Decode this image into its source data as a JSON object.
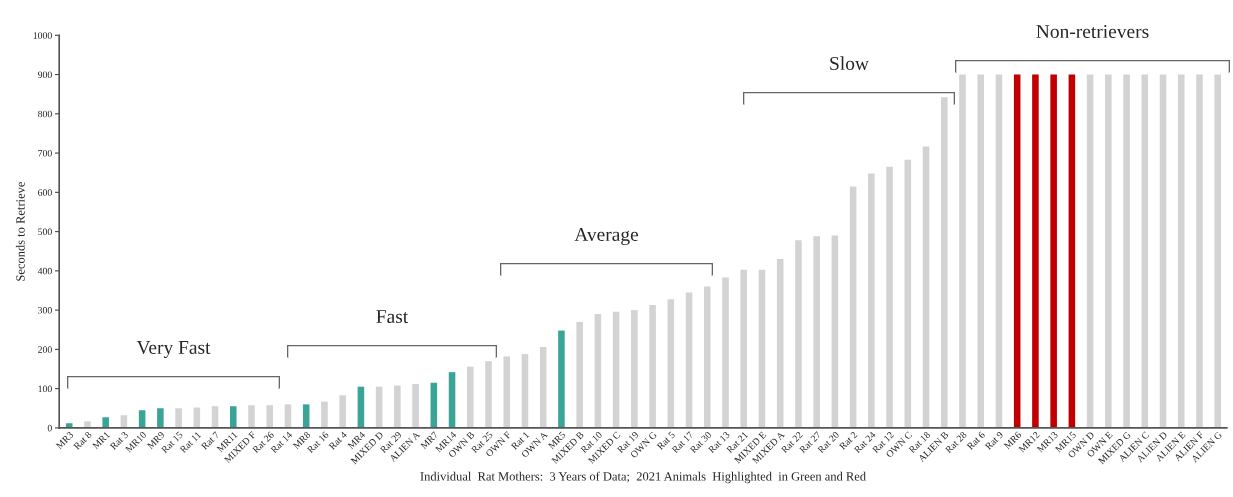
{
  "chart_data": {
    "type": "bar",
    "xlabel": "Individual  Rat Mothers:  3 Years of Data;  2021 Animals  Highlighted  in Green and Red",
    "ylabel": "Seconds to Retrieve",
    "categories": [
      "MR3",
      "Rat 8",
      "MR1",
      "Rat 3",
      "MR10",
      "MR9",
      "Rat 15",
      "Rat 11",
      "Rat 7",
      "MR11",
      "MIXED F",
      "Rat 26",
      "Rat 14",
      "MR8",
      "Rat 16",
      "Rat 4",
      "MR4",
      "MIXED D",
      "Rat 29",
      "ALIEN A",
      "MR7",
      "MR14",
      "OWN B",
      "Rat 25",
      "OWN F",
      "Rat 1",
      "OWN A",
      "MR5",
      "MIXED B",
      "Rat 10",
      "MIXED C",
      "Rat 19",
      "OWN G",
      "Rat 5",
      "Rat 17",
      "Rat 30",
      "Rat 13",
      "Rat 21",
      "MIXED E",
      "MIXED A",
      "Rat 22",
      "Rat 27",
      "Rat 20",
      "Rat 2",
      "Rat 24",
      "Rat 12",
      "OWN C",
      "Rat 18",
      "ALIEN B",
      "Rat 28",
      "Rat 6",
      "Rat 9",
      "MR6",
      "MR12",
      "MR13",
      "MR15",
      "OWN D",
      "OWN E",
      "MIXED G",
      "ALIEN C",
      "ALIEN D",
      "ALIEN E",
      "ALIEN F",
      "ALIEN G"
    ],
    "values": [
      12,
      17,
      27,
      32,
      45,
      50,
      50,
      52,
      55,
      55,
      58,
      58,
      60,
      60,
      67,
      83,
      105,
      105,
      108,
      112,
      115,
      142,
      156,
      170,
      182,
      188,
      206,
      248,
      270,
      290,
      296,
      300,
      313,
      328,
      345,
      360,
      383,
      403,
      403,
      430,
      478,
      488,
      490,
      615,
      648,
      665,
      683,
      717,
      842,
      900,
      900,
      900,
      900,
      900,
      900,
      900,
      900,
      900,
      900,
      900,
      900,
      900,
      900,
      900
    ],
    "colors": [
      "#3aa597",
      "#d3d3d3",
      "#3aa597",
      "#d3d3d3",
      "#3aa597",
      "#3aa597",
      "#d3d3d3",
      "#d3d3d3",
      "#d3d3d3",
      "#3aa597",
      "#d3d3d3",
      "#d3d3d3",
      "#d3d3d3",
      "#3aa597",
      "#d3d3d3",
      "#d3d3d3",
      "#3aa597",
      "#d3d3d3",
      "#d3d3d3",
      "#d3d3d3",
      "#3aa597",
      "#3aa597",
      "#d3d3d3",
      "#d3d3d3",
      "#d3d3d3",
      "#d3d3d3",
      "#d3d3d3",
      "#3aa597",
      "#d3d3d3",
      "#d3d3d3",
      "#d3d3d3",
      "#d3d3d3",
      "#d3d3d3",
      "#d3d3d3",
      "#d3d3d3",
      "#d3d3d3",
      "#d3d3d3",
      "#d3d3d3",
      "#d3d3d3",
      "#d3d3d3",
      "#d3d3d3",
      "#d3d3d3",
      "#d3d3d3",
      "#d3d3d3",
      "#d3d3d3",
      "#d3d3d3",
      "#d3d3d3",
      "#d3d3d3",
      "#d3d3d3",
      "#d3d3d3",
      "#d3d3d3",
      "#d3d3d3",
      "#c00000",
      "#c00000",
      "#c00000",
      "#c00000",
      "#d3d3d3",
      "#d3d3d3",
      "#d3d3d3",
      "#d3d3d3",
      "#d3d3d3",
      "#d3d3d3",
      "#d3d3d3",
      "#d3d3d3"
    ],
    "ylim": [
      0,
      1000
    ],
    "yticks": [
      0,
      100,
      200,
      300,
      400,
      500,
      600,
      700,
      800,
      900,
      1000
    ],
    "grid": false,
    "annotations": [
      "Very Fast",
      "Fast",
      "Average",
      "Slow",
      "Non-retrievers"
    ]
  }
}
